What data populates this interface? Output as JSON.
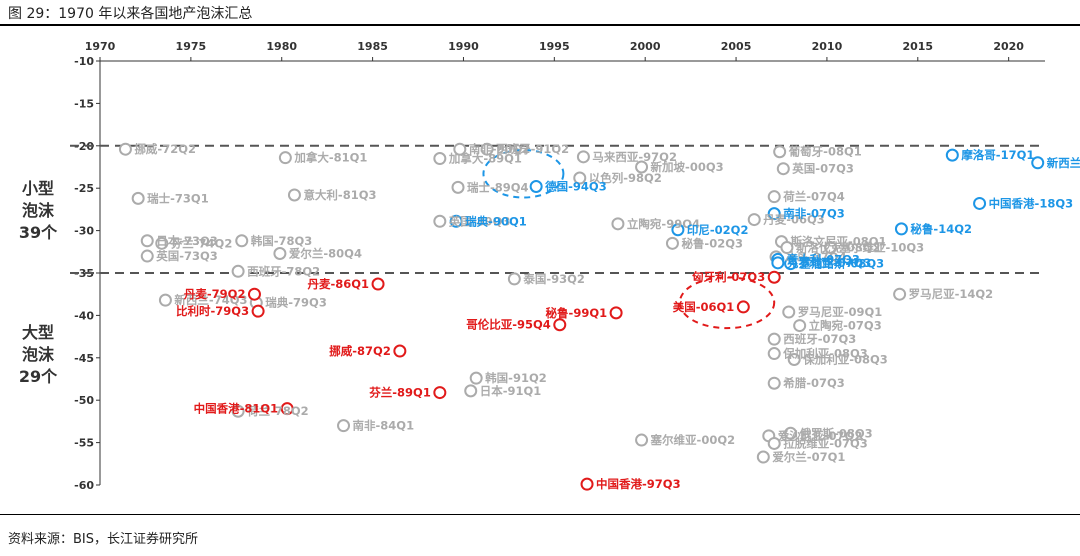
{
  "caption": "图 29：1970 年以来各国地产泡沫汇总",
  "source": "资料来源：BIS，长江证券研究所",
  "side_labels": {
    "small": [
      "小型",
      "泡沫",
      "39个"
    ],
    "large": [
      "大型",
      "泡沫",
      "29个"
    ]
  },
  "colors": {
    "gray": "#ababab",
    "blue": "#1d96e6",
    "red": "#e11a1a",
    "dash": "#555555"
  },
  "chart_data": {
    "type": "scatter",
    "xlim": [
      1970,
      2022
    ],
    "ylim": [
      -60,
      -10
    ],
    "x_ticks": [
      1970,
      1975,
      1980,
      1985,
      1990,
      1995,
      2000,
      2005,
      2010,
      2015,
      2020
    ],
    "y_ticks": [
      -10,
      -15,
      -20,
      -25,
      -30,
      -35,
      -40,
      -45,
      -50,
      -55,
      -60
    ],
    "thresholds": [
      -20,
      -35
    ],
    "points": [
      {
        "label": "挪威-72Q2",
        "x": 1971.4,
        "y": -20.4,
        "color": "gray"
      },
      {
        "label": "瑞士-73Q1",
        "x": 1972.1,
        "y": -26.2,
        "color": "gray"
      },
      {
        "label": "日本-73Q3",
        "x": 1972.6,
        "y": -31.2,
        "color": "gray"
      },
      {
        "label": "芬兰-74Q2",
        "x": 1973.4,
        "y": -31.5,
        "color": "gray"
      },
      {
        "label": "英国-73Q3",
        "x": 1972.6,
        "y": -33.0,
        "color": "gray"
      },
      {
        "label": "新西兰-74Q3",
        "x": 1973.6,
        "y": -38.2,
        "color": "gray"
      },
      {
        "label": "加拿大-81Q1",
        "x": 1980.2,
        "y": -21.4,
        "color": "gray"
      },
      {
        "label": "意大利-81Q3",
        "x": 1980.7,
        "y": -25.8,
        "color": "gray"
      },
      {
        "label": "韩国-78Q3",
        "x": 1977.8,
        "y": -31.2,
        "color": "gray"
      },
      {
        "label": "爱尔兰-80Q4",
        "x": 1979.9,
        "y": -32.7,
        "color": "gray"
      },
      {
        "label": "西班牙-78Q2",
        "x": 1977.6,
        "y": -34.8,
        "color": "gray"
      },
      {
        "label": "瑞典-79Q3",
        "x": 1978.6,
        "y": -38.5,
        "color": "gray"
      },
      {
        "label": "荷兰-78Q2",
        "x": 1977.6,
        "y": -51.3,
        "color": "gray"
      },
      {
        "label": "南非-84Q1",
        "x": 1983.4,
        "y": -53.0,
        "color": "gray"
      },
      {
        "label": "丹麦-79Q2",
        "x": 1978.5,
        "y": -37.5,
        "color": "red"
      },
      {
        "label": "比利时-79Q3",
        "x": 1978.7,
        "y": -39.5,
        "color": "red"
      },
      {
        "label": "丹麦-86Q1",
        "x": 1985.3,
        "y": -36.3,
        "color": "red"
      },
      {
        "label": "挪威-87Q2",
        "x": 1986.5,
        "y": -44.2,
        "color": "red"
      },
      {
        "label": "芬兰-89Q1",
        "x": 1988.7,
        "y": -49.1,
        "color": "red"
      },
      {
        "label": "中国香港-81Q1",
        "x": 1980.3,
        "y": -51.0,
        "color": "red"
      },
      {
        "label": "南非-90Q2",
        "x": 1989.8,
        "y": -20.4,
        "color": "gray"
      },
      {
        "label": "加拿大-89Q1",
        "x": 1988.7,
        "y": -21.5,
        "color": "gray"
      },
      {
        "label": "瑞士-89Q4",
        "x": 1989.7,
        "y": -24.9,
        "color": "gray"
      },
      {
        "label": "英国-89Q3",
        "x": 1988.7,
        "y": -28.9,
        "color": "gray"
      },
      {
        "label": "西班牙-91Q2",
        "x": 1991.3,
        "y": -20.4,
        "color": "gray"
      },
      {
        "label": "以色列-98Q2",
        "x": 1996.4,
        "y": -23.8,
        "color": "gray"
      },
      {
        "label": "马来西亚-97Q2",
        "x": 1996.6,
        "y": -21.3,
        "color": "gray"
      },
      {
        "label": "新加坡-00Q3",
        "x": 1999.8,
        "y": -22.5,
        "color": "gray"
      },
      {
        "label": "立陶宛-99Q4",
        "x": 1998.5,
        "y": -29.2,
        "color": "gray"
      },
      {
        "label": "泰国-93Q2",
        "x": 1992.8,
        "y": -35.7,
        "color": "gray"
      },
      {
        "label": "秘鲁-02Q3",
        "x": 2001.5,
        "y": -31.5,
        "color": "gray"
      },
      {
        "label": "韩国-91Q2",
        "x": 1990.7,
        "y": -47.4,
        "color": "gray"
      },
      {
        "label": "日本-91Q1",
        "x": 1990.4,
        "y": -48.9,
        "color": "gray"
      },
      {
        "label": "塞尔维亚-00Q2",
        "x": 1999.8,
        "y": -54.7,
        "color": "gray"
      },
      {
        "label": "德国-94Q3",
        "x": 1994.0,
        "y": -24.8,
        "color": "blue"
      },
      {
        "label": "瑞典-90Q1",
        "x": 1989.6,
        "y": -28.9,
        "color": "blue"
      },
      {
        "label": "印尼-02Q2",
        "x": 2001.8,
        "y": -29.9,
        "color": "blue"
      },
      {
        "label": "哥伦比亚-95Q4",
        "x": 1995.3,
        "y": -41.1,
        "color": "red"
      },
      {
        "label": "秘鲁-99Q1",
        "x": 1998.4,
        "y": -39.7,
        "color": "red"
      },
      {
        "label": "中国香港-97Q3",
        "x": 1996.8,
        "y": -59.9,
        "color": "red"
      },
      {
        "label": "葡萄牙-08Q1",
        "x": 2007.4,
        "y": -20.7,
        "color": "gray"
      },
      {
        "label": "英国-07Q3",
        "x": 2007.6,
        "y": -22.7,
        "color": "gray"
      },
      {
        "label": "丹麦-06Q3",
        "x": 2006.0,
        "y": -28.7,
        "color": "gray"
      },
      {
        "label": "荷兰-07Q4",
        "x": 2007.1,
        "y": -26.0,
        "color": "gray"
      },
      {
        "label": "斯洛文尼亚-08Q1",
        "x": 2007.5,
        "y": -31.3,
        "color": "gray"
      },
      {
        "label": "斯洛伐克-08Q2",
        "x": 2007.8,
        "y": -32.0,
        "color": "gray"
      },
      {
        "label": "塞尔维亚-10Q3",
        "x": 2010.2,
        "y": -32.0,
        "color": "gray"
      },
      {
        "label": "冰岛-07Q4",
        "x": 2007.2,
        "y": -33.1,
        "color": "gray"
      },
      {
        "label": "罗马尼亚-14Q2",
        "x": 2014.0,
        "y": -37.5,
        "color": "gray"
      },
      {
        "label": "罗马尼亚-09Q1",
        "x": 2007.9,
        "y": -39.6,
        "color": "gray"
      },
      {
        "label": "立陶宛-07Q3",
        "x": 2008.5,
        "y": -41.2,
        "color": "gray"
      },
      {
        "label": "西班牙-07Q3",
        "x": 2007.1,
        "y": -42.8,
        "color": "gray"
      },
      {
        "label": "保加利亚-08Q3",
        "x": 2007.1,
        "y": -44.5,
        "color": "gray"
      },
      {
        "label": "保加利亚-08Q3",
        "x": 2008.2,
        "y": -45.2,
        "color": "gray"
      },
      {
        "label": "希腊-07Q3",
        "x": 2007.1,
        "y": -48.0,
        "color": "gray"
      },
      {
        "label": "爱沙尼亚-07Q2",
        "x": 2006.8,
        "y": -54.2,
        "color": "gray"
      },
      {
        "label": "拉脱维亚-07Q3",
        "x": 2007.1,
        "y": -55.1,
        "color": "gray"
      },
      {
        "label": "俄罗斯-08Q3",
        "x": 2008.0,
        "y": -53.9,
        "color": "gray"
      },
      {
        "label": "爱尔兰-07Q1",
        "x": 2006.5,
        "y": -56.7,
        "color": "gray"
      },
      {
        "label": "摩洛哥-17Q1",
        "x": 2016.9,
        "y": -21.1,
        "color": "blue"
      },
      {
        "label": "新西兰-21Q4",
        "x": 2021.6,
        "y": -22.0,
        "color": "blue"
      },
      {
        "label": "南非-07Q3",
        "x": 2007.1,
        "y": -28.0,
        "color": "blue"
      },
      {
        "label": "秘鲁-14Q2",
        "x": 2014.1,
        "y": -29.8,
        "color": "blue"
      },
      {
        "label": "中国香港-18Q3",
        "x": 2018.4,
        "y": -26.8,
        "color": "blue"
      },
      {
        "label": "意大利-07Q3",
        "x": 2007.3,
        "y": -33.4,
        "color": "blue"
      },
      {
        "label": "克罗地亚-07Q3",
        "x": 2007.3,
        "y": -33.8,
        "color": "blue"
      },
      {
        "label": "塞浦路斯-08Q3",
        "x": 2008.0,
        "y": -33.9,
        "color": "blue"
      },
      {
        "label": "匈牙利-07Q3",
        "x": 2007.1,
        "y": -35.5,
        "color": "red"
      },
      {
        "label": "美国-06Q1",
        "x": 2005.4,
        "y": -39.0,
        "color": "red"
      }
    ],
    "annotations": [
      {
        "type": "ellipse",
        "color": "blue",
        "cx": 1993.3,
        "cy": -23.3,
        "rx": 2.2,
        "ry": 2.8
      },
      {
        "type": "ellipse",
        "color": "red",
        "cx": 2004.5,
        "cy": -38.5,
        "rx": 2.6,
        "ry": 3.0
      }
    ]
  }
}
